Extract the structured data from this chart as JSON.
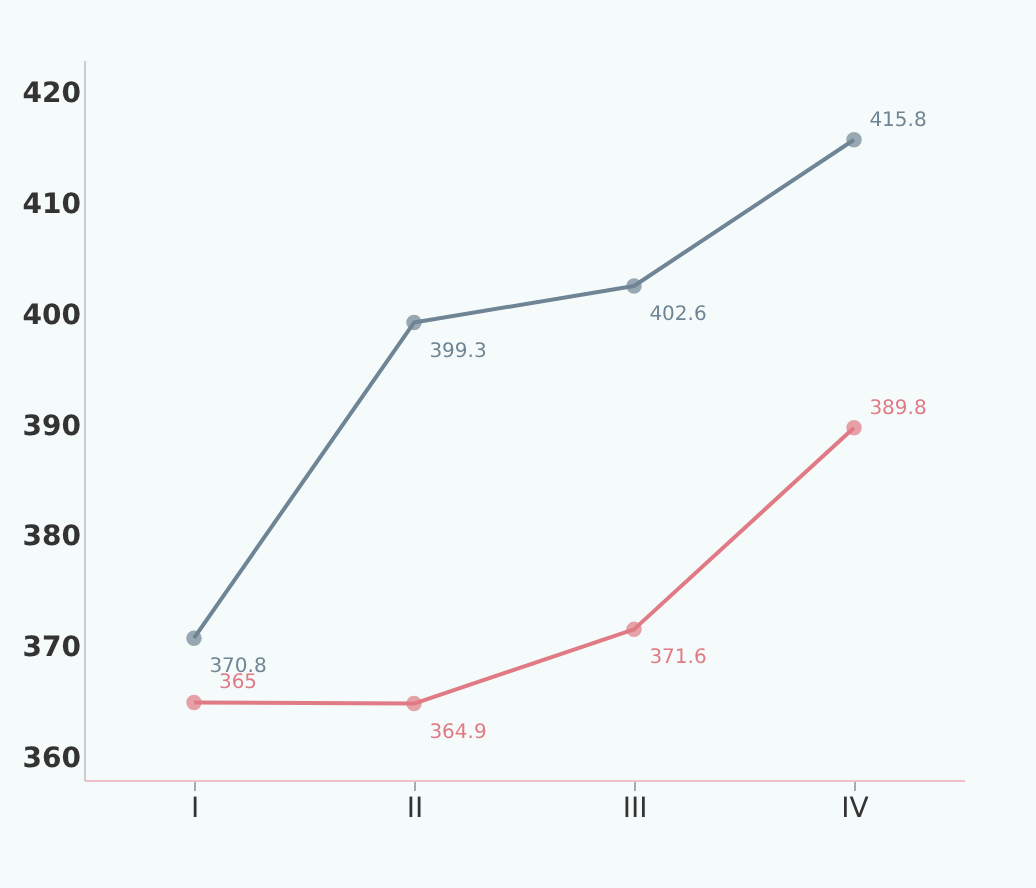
{
  "chart_data": {
    "type": "line",
    "categories": [
      "I",
      "II",
      "III",
      "IV"
    ],
    "series": [
      {
        "color": "#6f8494",
        "values": [
          370.8,
          399.3,
          402.6,
          415.8
        ]
      },
      {
        "color": "#e07a84",
        "values": [
          365,
          364.9,
          371.6,
          389.8
        ]
      }
    ],
    "ylim": [
      358,
      423
    ],
    "yticks": [
      360,
      370,
      380,
      390,
      400,
      410,
      420
    ],
    "grid": false,
    "marker": "circle",
    "data_labels": true
  }
}
